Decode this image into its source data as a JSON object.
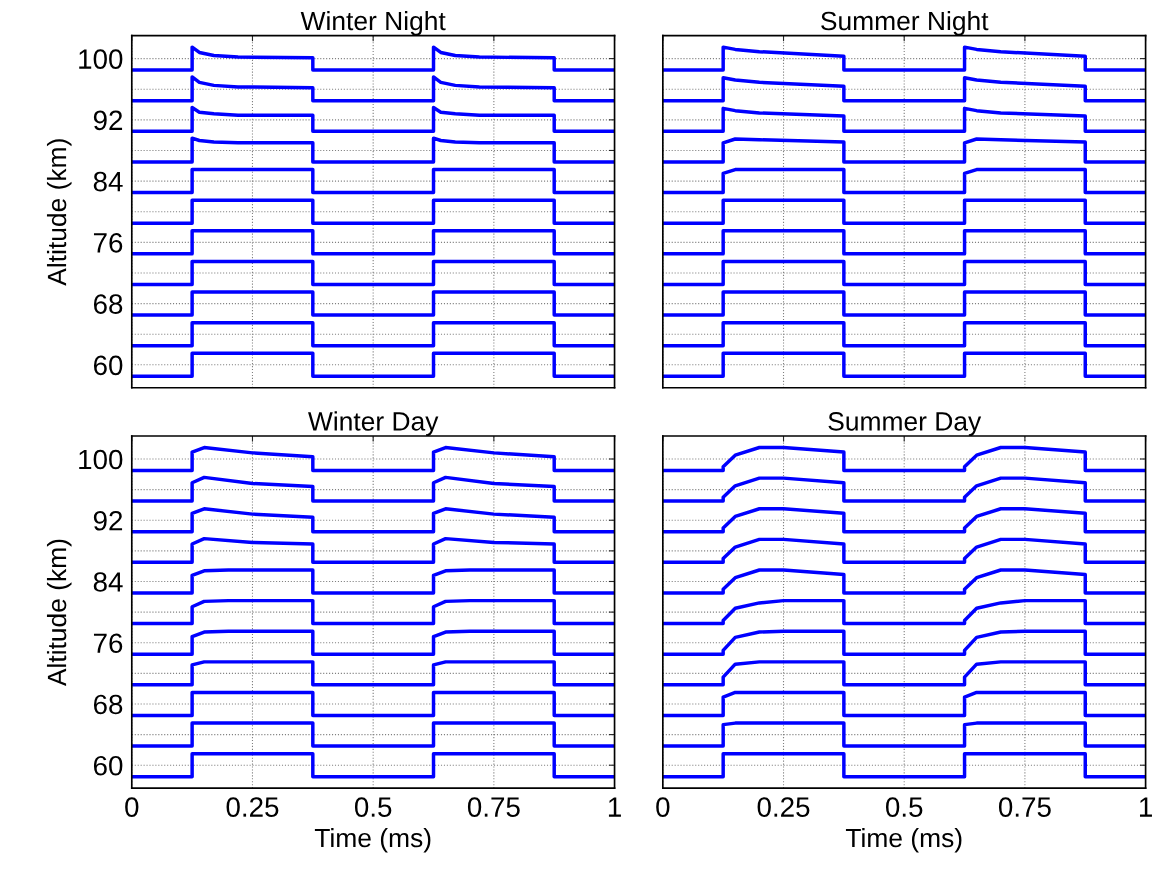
{
  "chart_data": [
    {
      "type": "line",
      "title": "Winter Night",
      "ylabel": "Altitude (km)",
      "xlim": [
        0,
        1
      ],
      "ylim": [
        57,
        103
      ],
      "xticks": [
        0,
        0.25,
        0.5,
        0.75,
        1
      ],
      "yticks": [
        60,
        {
          "value": 64,
          "label": null
        },
        68,
        {
          "value": 72,
          "label": null
        },
        76,
        {
          "value": 80,
          "label": null
        },
        84,
        {
          "value": 88,
          "label": null
        },
        92,
        {
          "value": 96,
          "label": null
        },
        100
      ],
      "grid": true,
      "tick_labels": "y",
      "series": [
        {
          "color": "#0000ff",
          "x": [
            0,
            0.125,
            0.125,
            0.375,
            0.375,
            0.625,
            0.625,
            0.875,
            0.875,
            1
          ],
          "values": [
            58.5,
            58.5,
            61.5,
            61.5,
            58.5,
            58.5,
            61.5,
            61.5,
            58.5,
            58.5
          ]
        },
        {
          "color": "#0000ff",
          "x": [
            0,
            0.125,
            0.125,
            0.375,
            0.375,
            0.625,
            0.625,
            0.875,
            0.875,
            1
          ],
          "values": [
            62.5,
            62.5,
            65.5,
            65.5,
            62.5,
            62.5,
            65.5,
            65.5,
            62.5,
            62.5
          ]
        },
        {
          "color": "#0000ff",
          "x": [
            0,
            0.125,
            0.125,
            0.375,
            0.375,
            0.625,
            0.625,
            0.875,
            0.875,
            1
          ],
          "values": [
            66.5,
            66.5,
            69.5,
            69.5,
            66.5,
            66.5,
            69.5,
            69.5,
            66.5,
            66.5
          ]
        },
        {
          "color": "#0000ff",
          "x": [
            0,
            0.125,
            0.125,
            0.375,
            0.375,
            0.625,
            0.625,
            0.875,
            0.875,
            1
          ],
          "values": [
            70.5,
            70.5,
            73.5,
            73.5,
            70.5,
            70.5,
            73.5,
            73.5,
            70.5,
            70.5
          ]
        },
        {
          "color": "#0000ff",
          "x": [
            0,
            0.125,
            0.125,
            0.375,
            0.375,
            0.625,
            0.625,
            0.875,
            0.875,
            1
          ],
          "values": [
            74.5,
            74.5,
            77.5,
            77.5,
            74.5,
            74.5,
            77.5,
            77.5,
            74.5,
            74.5
          ]
        },
        {
          "color": "#0000ff",
          "x": [
            0,
            0.125,
            0.125,
            0.375,
            0.375,
            0.625,
            0.625,
            0.875,
            0.875,
            1
          ],
          "values": [
            78.5,
            78.5,
            81.5,
            81.5,
            78.5,
            78.5,
            81.5,
            81.5,
            78.5,
            78.5
          ]
        },
        {
          "color": "#0000ff",
          "x": [
            0,
            0.125,
            0.125,
            0.375,
            0.375,
            0.625,
            0.625,
            0.875,
            0.875,
            1
          ],
          "values": [
            82.5,
            82.5,
            85.5,
            85.5,
            82.5,
            82.5,
            85.5,
            85.5,
            82.5,
            82.5
          ]
        },
        {
          "color": "#0000ff",
          "x": [
            0,
            0.125,
            0.125,
            0.14,
            0.17,
            0.22,
            0.375,
            0.375,
            0.625,
            0.625,
            0.64,
            0.67,
            0.72,
            0.875,
            0.875,
            1
          ],
          "values": [
            86.5,
            86.5,
            89.6,
            89.3,
            89.1,
            89.0,
            89.0,
            86.5,
            86.5,
            89.6,
            89.3,
            89.1,
            89.0,
            89.0,
            86.5,
            86.5
          ]
        },
        {
          "color": "#0000ff",
          "x": [
            0,
            0.125,
            0.125,
            0.14,
            0.17,
            0.22,
            0.375,
            0.375,
            0.625,
            0.625,
            0.64,
            0.67,
            0.72,
            0.875,
            0.875,
            1
          ],
          "values": [
            90.5,
            90.5,
            93.6,
            93.0,
            92.8,
            92.6,
            92.6,
            90.5,
            90.5,
            93.6,
            93.0,
            92.8,
            92.6,
            92.6,
            90.5,
            90.5
          ]
        },
        {
          "color": "#0000ff",
          "x": [
            0,
            0.125,
            0.125,
            0.14,
            0.17,
            0.22,
            0.375,
            0.375,
            0.625,
            0.625,
            0.64,
            0.67,
            0.72,
            0.875,
            0.875,
            1
          ],
          "values": [
            94.5,
            94.5,
            97.6,
            96.9,
            96.5,
            96.3,
            96.2,
            94.5,
            94.5,
            97.6,
            96.9,
            96.5,
            96.3,
            96.2,
            94.5,
            94.5
          ]
        },
        {
          "color": "#0000ff",
          "x": [
            0,
            0.125,
            0.125,
            0.14,
            0.17,
            0.22,
            0.375,
            0.375,
            0.625,
            0.625,
            0.64,
            0.67,
            0.72,
            0.875,
            0.875,
            1
          ],
          "values": [
            98.5,
            98.5,
            101.5,
            100.8,
            100.4,
            100.2,
            100.1,
            98.5,
            98.5,
            101.5,
            100.8,
            100.4,
            100.2,
            100.1,
            98.5,
            98.5
          ]
        }
      ]
    },
    {
      "type": "line",
      "title": "Summer Night",
      "xlim": [
        0,
        1
      ],
      "ylim": [
        57,
        103
      ],
      "xticks": [
        0,
        0.25,
        0.5,
        0.75,
        1
      ],
      "yticks": [
        60,
        {
          "value": 64,
          "label": null
        },
        68,
        {
          "value": 72,
          "label": null
        },
        76,
        {
          "value": 80,
          "label": null
        },
        84,
        {
          "value": 88,
          "label": null
        },
        92,
        {
          "value": 96,
          "label": null
        },
        100
      ],
      "grid": true,
      "tick_labels": false,
      "series": [
        {
          "color": "#0000ff",
          "x": [
            0,
            0.125,
            0.125,
            0.375,
            0.375,
            0.625,
            0.625,
            0.875,
            0.875,
            1
          ],
          "values": [
            58.5,
            58.5,
            61.5,
            61.5,
            58.5,
            58.5,
            61.5,
            61.5,
            58.5,
            58.5
          ]
        },
        {
          "color": "#0000ff",
          "x": [
            0,
            0.125,
            0.125,
            0.375,
            0.375,
            0.625,
            0.625,
            0.875,
            0.875,
            1
          ],
          "values": [
            62.5,
            62.5,
            65.5,
            65.5,
            62.5,
            62.5,
            65.5,
            65.5,
            62.5,
            62.5
          ]
        },
        {
          "color": "#0000ff",
          "x": [
            0,
            0.125,
            0.125,
            0.375,
            0.375,
            0.625,
            0.625,
            0.875,
            0.875,
            1
          ],
          "values": [
            66.5,
            66.5,
            69.5,
            69.5,
            66.5,
            66.5,
            69.5,
            69.5,
            66.5,
            66.5
          ]
        },
        {
          "color": "#0000ff",
          "x": [
            0,
            0.125,
            0.125,
            0.375,
            0.375,
            0.625,
            0.625,
            0.875,
            0.875,
            1
          ],
          "values": [
            70.5,
            70.5,
            73.5,
            73.5,
            70.5,
            70.5,
            73.5,
            73.5,
            70.5,
            70.5
          ]
        },
        {
          "color": "#0000ff",
          "x": [
            0,
            0.125,
            0.125,
            0.375,
            0.375,
            0.625,
            0.625,
            0.875,
            0.875,
            1
          ],
          "values": [
            74.5,
            74.5,
            77.5,
            77.5,
            74.5,
            74.5,
            77.5,
            77.5,
            74.5,
            74.5
          ]
        },
        {
          "color": "#0000ff",
          "x": [
            0,
            0.125,
            0.125,
            0.375,
            0.375,
            0.625,
            0.625,
            0.875,
            0.875,
            1
          ],
          "values": [
            78.5,
            78.5,
            81.5,
            81.5,
            78.5,
            78.5,
            81.5,
            81.5,
            78.5,
            78.5
          ]
        },
        {
          "color": "#0000ff",
          "x": [
            0,
            0.125,
            0.125,
            0.15,
            0.2,
            0.375,
            0.375,
            0.625,
            0.625,
            0.65,
            0.7,
            0.875,
            0.875,
            1
          ],
          "values": [
            82.5,
            82.5,
            85.0,
            85.5,
            85.5,
            85.5,
            82.5,
            82.5,
            85.0,
            85.5,
            85.5,
            85.5,
            82.5,
            82.5
          ]
        },
        {
          "color": "#0000ff",
          "x": [
            0,
            0.125,
            0.125,
            0.15,
            0.2,
            0.375,
            0.375,
            0.625,
            0.625,
            0.65,
            0.7,
            0.875,
            0.875,
            1
          ],
          "values": [
            86.5,
            86.5,
            89.0,
            89.5,
            89.4,
            89.1,
            86.5,
            86.5,
            89.0,
            89.5,
            89.4,
            89.1,
            86.5,
            86.5
          ]
        },
        {
          "color": "#0000ff",
          "x": [
            0,
            0.125,
            0.125,
            0.15,
            0.2,
            0.375,
            0.375,
            0.625,
            0.625,
            0.65,
            0.7,
            0.875,
            0.875,
            1
          ],
          "values": [
            90.5,
            90.5,
            93.5,
            93.2,
            92.9,
            92.5,
            90.5,
            90.5,
            93.5,
            93.2,
            92.9,
            92.5,
            90.5,
            90.5
          ]
        },
        {
          "color": "#0000ff",
          "x": [
            0,
            0.125,
            0.125,
            0.15,
            0.2,
            0.375,
            0.375,
            0.625,
            0.625,
            0.65,
            0.7,
            0.875,
            0.875,
            1
          ],
          "values": [
            94.5,
            94.5,
            97.5,
            97.2,
            96.9,
            96.4,
            94.5,
            94.5,
            97.5,
            97.2,
            96.9,
            96.4,
            94.5,
            94.5
          ]
        },
        {
          "color": "#0000ff",
          "x": [
            0,
            0.125,
            0.125,
            0.15,
            0.2,
            0.375,
            0.375,
            0.625,
            0.625,
            0.65,
            0.7,
            0.875,
            0.875,
            1
          ],
          "values": [
            98.5,
            98.5,
            101.5,
            101.2,
            100.9,
            100.3,
            98.5,
            98.5,
            101.5,
            101.2,
            100.9,
            100.3,
            98.5,
            98.5
          ]
        }
      ]
    },
    {
      "type": "line",
      "title": "Winter Day",
      "xlabel": "Time (ms)",
      "ylabel": "Altitude (km)",
      "xlim": [
        0,
        1
      ],
      "ylim": [
        57,
        103
      ],
      "xticks": [
        0,
        0.25,
        0.5,
        0.75,
        1
      ],
      "yticks": [
        60,
        {
          "value": 64,
          "label": null
        },
        68,
        {
          "value": 72,
          "label": null
        },
        76,
        {
          "value": 80,
          "label": null
        },
        84,
        {
          "value": 88,
          "label": null
        },
        92,
        {
          "value": 96,
          "label": null
        },
        100
      ],
      "grid": true,
      "series": [
        {
          "color": "#0000ff",
          "x": [
            0,
            0.125,
            0.125,
            0.375,
            0.375,
            0.625,
            0.625,
            0.875,
            0.875,
            1
          ],
          "values": [
            58.5,
            58.5,
            61.5,
            61.5,
            58.5,
            58.5,
            61.5,
            61.5,
            58.5,
            58.5
          ]
        },
        {
          "color": "#0000ff",
          "x": [
            0,
            0.125,
            0.125,
            0.375,
            0.375,
            0.625,
            0.625,
            0.875,
            0.875,
            1
          ],
          "values": [
            62.5,
            62.5,
            65.5,
            65.5,
            62.5,
            62.5,
            65.5,
            65.5,
            62.5,
            62.5
          ]
        },
        {
          "color": "#0000ff",
          "x": [
            0,
            0.125,
            0.125,
            0.375,
            0.375,
            0.625,
            0.625,
            0.875,
            0.875,
            1
          ],
          "values": [
            66.5,
            66.5,
            69.5,
            69.5,
            66.5,
            66.5,
            69.5,
            69.5,
            66.5,
            66.5
          ]
        },
        {
          "color": "#0000ff",
          "x": [
            0,
            0.125,
            0.125,
            0.15,
            0.2,
            0.375,
            0.375,
            0.625,
            0.625,
            0.65,
            0.7,
            0.875,
            0.875,
            1
          ],
          "values": [
            70.5,
            70.5,
            73.1,
            73.5,
            73.5,
            73.5,
            70.5,
            70.5,
            73.1,
            73.5,
            73.5,
            73.5,
            70.5,
            70.5
          ]
        },
        {
          "color": "#0000ff",
          "x": [
            0,
            0.125,
            0.125,
            0.15,
            0.2,
            0.375,
            0.375,
            0.625,
            0.625,
            0.65,
            0.7,
            0.875,
            0.875,
            1
          ],
          "values": [
            74.5,
            74.5,
            76.8,
            77.4,
            77.5,
            77.5,
            74.5,
            74.5,
            76.8,
            77.4,
            77.5,
            77.5,
            74.5,
            74.5
          ]
        },
        {
          "color": "#0000ff",
          "x": [
            0,
            0.125,
            0.125,
            0.15,
            0.2,
            0.375,
            0.375,
            0.625,
            0.625,
            0.65,
            0.7,
            0.875,
            0.875,
            1
          ],
          "values": [
            78.5,
            78.5,
            80.7,
            81.4,
            81.5,
            81.5,
            78.5,
            78.5,
            80.7,
            81.4,
            81.5,
            81.5,
            78.5,
            78.5
          ]
        },
        {
          "color": "#0000ff",
          "x": [
            0,
            0.125,
            0.125,
            0.15,
            0.2,
            0.375,
            0.375,
            0.625,
            0.625,
            0.65,
            0.7,
            0.875,
            0.875,
            1
          ],
          "values": [
            82.5,
            82.5,
            84.8,
            85.4,
            85.5,
            85.5,
            82.5,
            82.5,
            84.8,
            85.4,
            85.5,
            85.5,
            82.5,
            82.5
          ]
        },
        {
          "color": "#0000ff",
          "x": [
            0,
            0.125,
            0.125,
            0.15,
            0.25,
            0.375,
            0.375,
            0.625,
            0.625,
            0.65,
            0.75,
            0.875,
            0.875,
            1
          ],
          "values": [
            86.5,
            86.5,
            88.9,
            89.6,
            89.1,
            88.9,
            86.5,
            86.5,
            88.9,
            89.6,
            89.1,
            88.9,
            86.5,
            86.5
          ]
        },
        {
          "color": "#0000ff",
          "x": [
            0,
            0.125,
            0.125,
            0.15,
            0.25,
            0.375,
            0.375,
            0.625,
            0.625,
            0.65,
            0.75,
            0.875,
            0.875,
            1
          ],
          "values": [
            90.5,
            90.5,
            92.9,
            93.5,
            92.8,
            92.4,
            90.5,
            90.5,
            92.9,
            93.5,
            92.8,
            92.4,
            90.5,
            90.5
          ]
        },
        {
          "color": "#0000ff",
          "x": [
            0,
            0.125,
            0.125,
            0.15,
            0.25,
            0.375,
            0.375,
            0.625,
            0.625,
            0.65,
            0.75,
            0.875,
            0.875,
            1
          ],
          "values": [
            94.5,
            94.5,
            96.9,
            97.6,
            96.8,
            96.4,
            94.5,
            94.5,
            96.9,
            97.6,
            96.8,
            96.4,
            94.5,
            94.5
          ]
        },
        {
          "color": "#0000ff",
          "x": [
            0,
            0.125,
            0.125,
            0.15,
            0.25,
            0.375,
            0.375,
            0.625,
            0.625,
            0.65,
            0.75,
            0.875,
            0.875,
            1
          ],
          "values": [
            98.5,
            98.5,
            100.9,
            101.5,
            100.8,
            100.3,
            98.5,
            98.5,
            100.9,
            101.5,
            100.8,
            100.3,
            98.5,
            98.5
          ]
        }
      ]
    },
    {
      "type": "line",
      "title": "Summer Day",
      "xlabel": "Time (ms)",
      "xlim": [
        0,
        1
      ],
      "ylim": [
        57,
        103
      ],
      "xticks": [
        0,
        0.25,
        0.5,
        0.75,
        1
      ],
      "yticks": [
        60,
        {
          "value": 64,
          "label": null
        },
        68,
        {
          "value": 72,
          "label": null
        },
        76,
        {
          "value": 80,
          "label": null
        },
        84,
        {
          "value": 88,
          "label": null
        },
        92,
        {
          "value": 96,
          "label": null
        },
        100
      ],
      "grid": true,
      "tick_labels": "x",
      "series": [
        {
          "color": "#0000ff",
          "x": [
            0,
            0.125,
            0.125,
            0.375,
            0.375,
            0.625,
            0.625,
            0.875,
            0.875,
            1
          ],
          "values": [
            58.5,
            58.5,
            61.5,
            61.5,
            58.5,
            58.5,
            61.5,
            61.5,
            58.5,
            58.5
          ]
        },
        {
          "color": "#0000ff",
          "x": [
            0,
            0.125,
            0.125,
            0.15,
            0.2,
            0.25,
            0.375,
            0.375,
            0.625,
            0.625,
            0.65,
            0.7,
            0.75,
            0.875,
            0.875,
            1
          ],
          "values": [
            62.5,
            62.5,
            65.3,
            65.5,
            65.5,
            65.5,
            65.5,
            62.5,
            62.5,
            65.3,
            65.5,
            65.5,
            65.5,
            65.5,
            62.5,
            62.5
          ]
        },
        {
          "color": "#0000ff",
          "x": [
            0,
            0.125,
            0.125,
            0.15,
            0.2,
            0.25,
            0.375,
            0.375,
            0.625,
            0.625,
            0.65,
            0.7,
            0.75,
            0.875,
            0.875,
            1
          ],
          "values": [
            66.5,
            66.5,
            68.9,
            69.5,
            69.5,
            69.5,
            69.5,
            66.5,
            66.5,
            68.9,
            69.5,
            69.5,
            69.5,
            69.5,
            66.5,
            66.5
          ]
        },
        {
          "color": "#0000ff",
          "x": [
            0,
            0.125,
            0.125,
            0.15,
            0.2,
            0.25,
            0.375,
            0.375,
            0.625,
            0.625,
            0.65,
            0.7,
            0.75,
            0.875,
            0.875,
            1
          ],
          "values": [
            70.5,
            70.5,
            71.5,
            73.2,
            73.5,
            73.5,
            73.5,
            70.5,
            70.5,
            71.5,
            73.2,
            73.5,
            73.5,
            73.5,
            70.5,
            70.5
          ]
        },
        {
          "color": "#0000ff",
          "x": [
            0,
            0.125,
            0.125,
            0.15,
            0.2,
            0.25,
            0.375,
            0.375,
            0.625,
            0.625,
            0.65,
            0.7,
            0.75,
            0.875,
            0.875,
            1
          ],
          "values": [
            74.5,
            74.5,
            75.0,
            76.7,
            77.4,
            77.5,
            77.5,
            74.5,
            74.5,
            75.0,
            76.7,
            77.4,
            77.5,
            77.5,
            74.5,
            74.5
          ]
        },
        {
          "color": "#0000ff",
          "x": [
            0,
            0.125,
            0.125,
            0.15,
            0.2,
            0.25,
            0.375,
            0.375,
            0.625,
            0.625,
            0.65,
            0.7,
            0.75,
            0.875,
            0.875,
            1
          ],
          "values": [
            78.5,
            78.5,
            78.9,
            80.5,
            81.2,
            81.5,
            81.5,
            78.5,
            78.5,
            78.9,
            80.5,
            81.2,
            81.5,
            81.5,
            78.5,
            78.5
          ]
        },
        {
          "color": "#0000ff",
          "x": [
            0,
            0.125,
            0.125,
            0.15,
            0.2,
            0.25,
            0.375,
            0.375,
            0.625,
            0.625,
            0.65,
            0.7,
            0.75,
            0.875,
            0.875,
            1
          ],
          "values": [
            82.5,
            82.5,
            83.0,
            84.5,
            85.5,
            85.5,
            84.9,
            82.5,
            82.5,
            83.0,
            84.5,
            85.5,
            85.5,
            84.9,
            82.5,
            82.5
          ]
        },
        {
          "color": "#0000ff",
          "x": [
            0,
            0.125,
            0.125,
            0.15,
            0.2,
            0.25,
            0.375,
            0.375,
            0.625,
            0.625,
            0.65,
            0.7,
            0.75,
            0.875,
            0.875,
            1
          ],
          "values": [
            86.5,
            86.5,
            87.0,
            88.5,
            89.5,
            89.5,
            88.9,
            86.5,
            86.5,
            87.0,
            88.5,
            89.5,
            89.5,
            88.9,
            86.5,
            86.5
          ]
        },
        {
          "color": "#0000ff",
          "x": [
            0,
            0.125,
            0.125,
            0.15,
            0.2,
            0.25,
            0.375,
            0.375,
            0.625,
            0.625,
            0.65,
            0.7,
            0.75,
            0.875,
            0.875,
            1
          ],
          "values": [
            90.5,
            90.5,
            91.0,
            92.5,
            93.5,
            93.5,
            92.9,
            90.5,
            90.5,
            91.0,
            92.5,
            93.5,
            93.5,
            92.9,
            90.5,
            90.5
          ]
        },
        {
          "color": "#0000ff",
          "x": [
            0,
            0.125,
            0.125,
            0.15,
            0.2,
            0.25,
            0.375,
            0.375,
            0.625,
            0.625,
            0.65,
            0.7,
            0.75,
            0.875,
            0.875,
            1
          ],
          "values": [
            94.5,
            94.5,
            95.0,
            96.5,
            97.5,
            97.5,
            96.9,
            94.5,
            94.5,
            95.0,
            96.5,
            97.5,
            97.5,
            96.9,
            94.5,
            94.5
          ]
        },
        {
          "color": "#0000ff",
          "x": [
            0,
            0.125,
            0.125,
            0.15,
            0.2,
            0.25,
            0.375,
            0.375,
            0.625,
            0.625,
            0.65,
            0.7,
            0.75,
            0.875,
            0.875,
            1
          ],
          "values": [
            98.5,
            98.5,
            99.0,
            100.5,
            101.5,
            101.5,
            100.9,
            98.5,
            98.5,
            99.0,
            100.5,
            101.5,
            101.5,
            100.9,
            98.5,
            98.5
          ]
        }
      ]
    }
  ]
}
